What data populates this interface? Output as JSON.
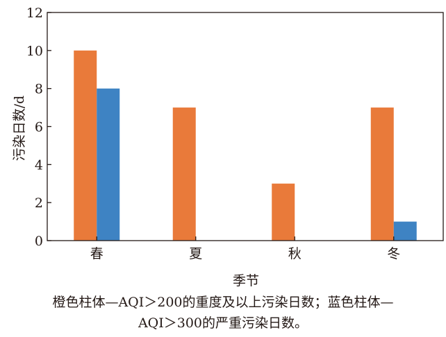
{
  "chart_data": {
    "type": "bar",
    "categories": [
      "春",
      "夏",
      "秋",
      "冬"
    ],
    "series": [
      {
        "values": [
          10,
          7,
          3,
          7
        ],
        "color": "#E97A3A"
      },
      {
        "values": [
          8,
          0,
          0,
          1
        ],
        "color": "#3E83C3"
      }
    ],
    "xlabel": "季节",
    "ylabel": "污染日数/d",
    "ylim": [
      0,
      12
    ],
    "yticks": [
      0,
      2,
      4,
      6,
      8,
      10,
      12
    ],
    "grid": false
  },
  "caption": {
    "line1": "橙色柱体—AQI＞200的重度及以上污染日数；蓝色柱体—",
    "line2": "AQI＞300的严重污染日数。"
  }
}
